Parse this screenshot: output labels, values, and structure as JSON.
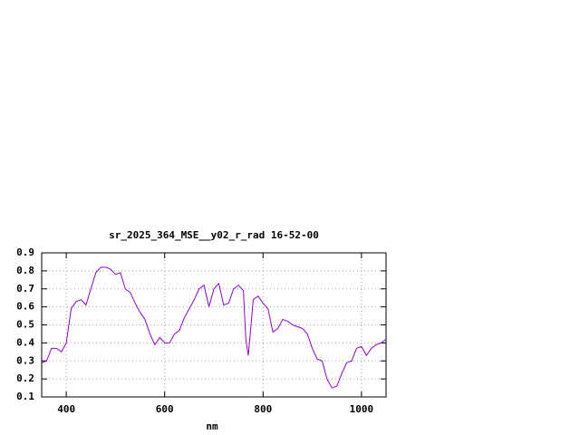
{
  "chart_data": {
    "type": "line",
    "title": "sr_2025_364_MSE__y02_r_rad 16-52-00",
    "x_label": "nm",
    "x": [
      350,
      360,
      370,
      380,
      390,
      400,
      410,
      420,
      430,
      440,
      450,
      460,
      470,
      480,
      490,
      500,
      510,
      520,
      530,
      540,
      550,
      560,
      570,
      580,
      590,
      600,
      610,
      620,
      630,
      640,
      650,
      660,
      670,
      680,
      690,
      700,
      710,
      720,
      730,
      740,
      750,
      760,
      765,
      770,
      780,
      790,
      800,
      810,
      820,
      830,
      840,
      850,
      860,
      870,
      880,
      890,
      900,
      910,
      920,
      930,
      940,
      950,
      960,
      970,
      980,
      990,
      1000,
      1010,
      1020,
      1030,
      1040,
      1050
    ],
    "series": [
      {
        "color": "#9400d3",
        "values": [
          0.29,
          0.3,
          0.37,
          0.37,
          0.35,
          0.4,
          0.59,
          0.63,
          0.64,
          0.61,
          0.7,
          0.79,
          0.82,
          0.82,
          0.81,
          0.78,
          0.79,
          0.7,
          0.68,
          0.62,
          0.57,
          0.53,
          0.45,
          0.39,
          0.43,
          0.4,
          0.4,
          0.45,
          0.47,
          0.54,
          0.59,
          0.64,
          0.7,
          0.72,
          0.6,
          0.7,
          0.73,
          0.61,
          0.62,
          0.7,
          0.72,
          0.69,
          0.42,
          0.33,
          0.64,
          0.66,
          0.62,
          0.59,
          0.46,
          0.48,
          0.53,
          0.52,
          0.5,
          0.49,
          0.48,
          0.45,
          0.37,
          0.31,
          0.3,
          0.2,
          0.15,
          0.16,
          0.23,
          0.29,
          0.3,
          0.37,
          0.38,
          0.33,
          0.37,
          0.39,
          0.4,
          0.42
        ]
      }
    ],
    "xlim": [
      350,
      1050
    ],
    "xticks": [
      400,
      600,
      800,
      1000
    ],
    "ylim": [
      0.1,
      0.9
    ],
    "yticks": [
      0.1,
      0.2,
      0.3,
      0.4,
      0.5,
      0.6,
      0.7,
      0.8,
      0.9
    ],
    "grid": true
  }
}
